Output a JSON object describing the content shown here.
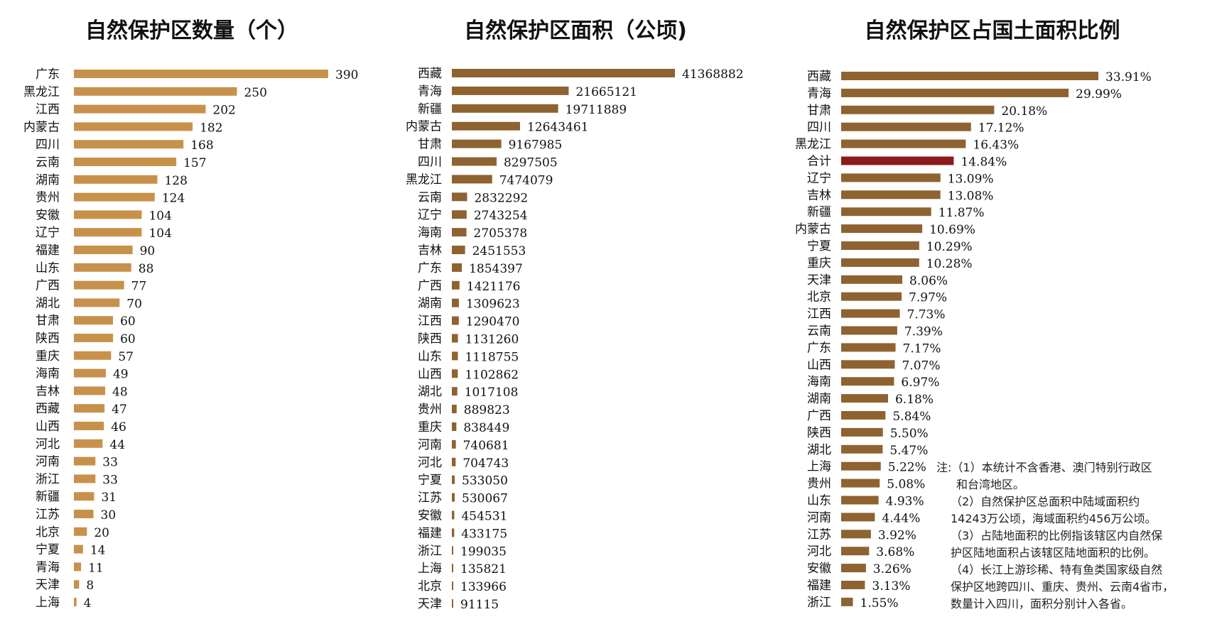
{
  "colors": {
    "count_bar": "#c8914b",
    "area_bar": "#8e6331",
    "ratio_bar": "#8e6331",
    "highlight_bar": "#8b1a1a"
  },
  "chart_data": [
    {
      "type": "bar",
      "orientation": "horizontal",
      "title": "自然保护区数量（个）",
      "categories": [
        "广东",
        "黑龙江",
        "江西",
        "内蒙古",
        "四川",
        "云南",
        "湖南",
        "贵州",
        "安徽",
        "辽宁",
        "福建",
        "山东",
        "广西",
        "湖北",
        "甘肃",
        "陕西",
        "重庆",
        "海南",
        "吉林",
        "西藏",
        "山西",
        "河北",
        "河南",
        "浙江",
        "新疆",
        "江苏",
        "北京",
        "宁夏",
        "青海",
        "天津",
        "上海"
      ],
      "values": [
        390,
        250,
        202,
        182,
        168,
        157,
        128,
        124,
        104,
        104,
        90,
        88,
        77,
        70,
        60,
        60,
        57,
        49,
        48,
        47,
        46,
        44,
        33,
        33,
        31,
        30,
        20,
        14,
        11,
        8,
        4
      ],
      "value_labels": [
        "390",
        "250",
        "202",
        "182",
        "168",
        "157",
        "128",
        "124",
        "104",
        "104",
        "90",
        "88",
        "77",
        "70",
        "60",
        "60",
        "57",
        "49",
        "48",
        "47",
        "46",
        "44",
        "33",
        "33",
        "31",
        "30",
        "20",
        "14",
        "11",
        "8",
        "4"
      ],
      "xlim": [
        0,
        390
      ]
    },
    {
      "type": "bar",
      "orientation": "horizontal",
      "title": "自然保护区面积（公顷)",
      "categories": [
        "西藏",
        "青海",
        "新疆",
        "内蒙古",
        "甘肃",
        "四川",
        "黑龙江",
        "云南",
        "辽宁",
        "海南",
        "吉林",
        "广东",
        "广西",
        "湖南",
        "江西",
        "陕西",
        "山东",
        "山西",
        "湖北",
        "贵州",
        "重庆",
        "河南",
        "河北",
        "宁夏",
        "江苏",
        "安徽",
        "福建",
        "浙江",
        "上海",
        "北京",
        "天津"
      ],
      "values": [
        41368882,
        21665121,
        19711889,
        12643461,
        9167985,
        8297505,
        7474079,
        2832292,
        2743254,
        2705378,
        2451553,
        1854397,
        1421176,
        1309623,
        1290470,
        1131260,
        1118755,
        1102862,
        1017108,
        889823,
        838449,
        740681,
        704743,
        533050,
        530067,
        454531,
        433175,
        199035,
        135821,
        133966,
        91115
      ],
      "value_labels": [
        "41368882",
        "21665121",
        "19711889",
        "12643461",
        "9167985",
        "8297505",
        "7474079",
        "2832292",
        "2743254",
        "2705378",
        "2451553",
        "1854397",
        "1421176",
        "1309623",
        "1290470",
        "1131260",
        "1118755",
        "1102862",
        "1017108",
        "889823",
        "838449",
        "740681",
        "704743",
        "533050",
        "530067",
        "454531",
        "433175",
        "199035",
        "135821",
        "133966",
        "91115"
      ],
      "xlim": [
        0,
        41368882
      ]
    },
    {
      "type": "bar",
      "orientation": "horizontal",
      "title": "自然保护区占国土面积比例",
      "categories": [
        "西藏",
        "青海",
        "甘肃",
        "四川",
        "黑龙江",
        "合计",
        "辽宁",
        "吉林",
        "新疆",
        "内蒙古",
        "宁夏",
        "重庆",
        "天津",
        "北京",
        "江西",
        "云南",
        "广东",
        "山西",
        "海南",
        "湖南",
        "广西",
        "陕西",
        "湖北",
        "上海",
        "贵州",
        "山东",
        "河南",
        "江苏",
        "河北",
        "安徽",
        "福建",
        "浙江"
      ],
      "values": [
        33.91,
        29.99,
        20.18,
        17.12,
        16.43,
        14.84,
        13.09,
        13.08,
        11.87,
        10.69,
        10.29,
        10.28,
        8.06,
        7.97,
        7.73,
        7.39,
        7.17,
        7.07,
        6.97,
        6.18,
        5.84,
        5.5,
        5.47,
        5.22,
        5.08,
        4.93,
        4.44,
        3.92,
        3.68,
        3.26,
        3.13,
        1.55
      ],
      "value_labels": [
        "33.91%",
        "29.99%",
        "20.18%",
        "17.12%",
        "16.43%",
        "14.84%",
        "13.09%",
        "13.08%",
        "11.87%",
        "10.69%",
        "10.29%",
        "10.28%",
        "8.06%",
        "7.97%",
        "7.73%",
        "7.39%",
        "7.17%",
        "7.07%",
        "6.97%",
        "6.18%",
        "5.84%",
        "5.50%",
        "5.47%",
        "5.22%",
        "5.08%",
        "4.93%",
        "4.44%",
        "3.92%",
        "3.68%",
        "3.26%",
        "3.13%",
        "1.55%"
      ],
      "highlight_category": "合计",
      "xlim": [
        0,
        33.91
      ]
    }
  ],
  "notes": {
    "line1": "注:（1）本统计不含香港、澳门特别行政区",
    "line2": "和台湾地区。",
    "line3": "（2）自然保护区总面积中陆域面积约",
    "line4": "14243万公顷，海域面积约456万公顷。",
    "line5": "（3）占陆地面积的比例指该辖区内自然保",
    "line6": "护区陆地面积占该辖区陆地面积的比例。",
    "line7": "（4）长江上游珍稀、特有鱼类国家级自然",
    "line8": "保护区地跨四川、重庆、贵州、云南4省市，",
    "line9": "数量计入四川，面积分别计入各省。"
  }
}
